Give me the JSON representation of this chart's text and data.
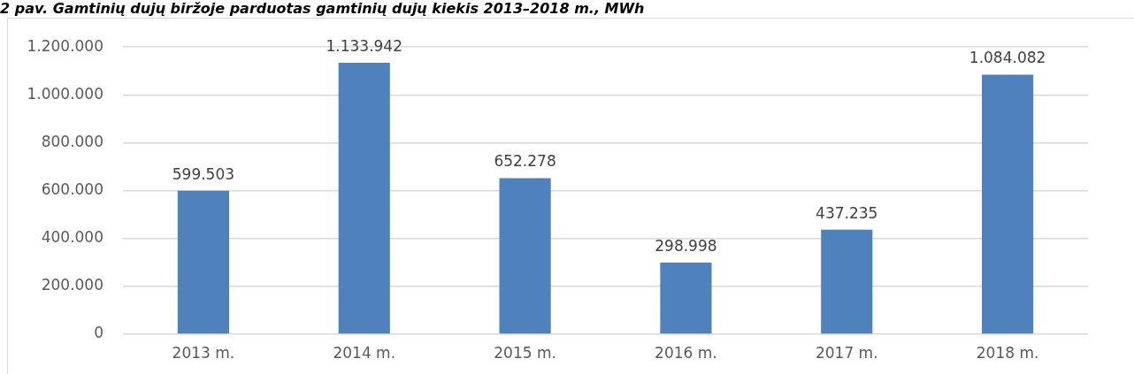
{
  "chart_data": {
    "type": "bar",
    "title": "2 pav. Gamtinių dujų biržoje parduotas gamtinių dujų kiekis 2013–2018 m., MWh",
    "categories": [
      "2013 m.",
      "2014 m.",
      "2015 m.",
      "2016 m.",
      "2017 m.",
      "2018 m."
    ],
    "values": [
      599503,
      1133942,
      652278,
      298998,
      437235,
      1084082
    ],
    "value_labels": [
      "599.503",
      "1.133.942",
      "652.278",
      "298.998",
      "437.235",
      "1.084.082"
    ],
    "color": "#4f81bd",
    "ylim": [
      0,
      1200000
    ],
    "yticks": [
      0,
      {
        "value": 200000,
        "label": "200.000"
      },
      {
        "value": 400000,
        "label": "400.000"
      },
      {
        "value": 600000,
        "label": "600.000"
      },
      {
        "value": 800000,
        "label": "800.000"
      },
      {
        "value": 1000000,
        "label": "1.000.000"
      },
      {
        "value": 1200000,
        "label": "1.200.000"
      }
    ],
    "grid": "y",
    "legend": false
  }
}
